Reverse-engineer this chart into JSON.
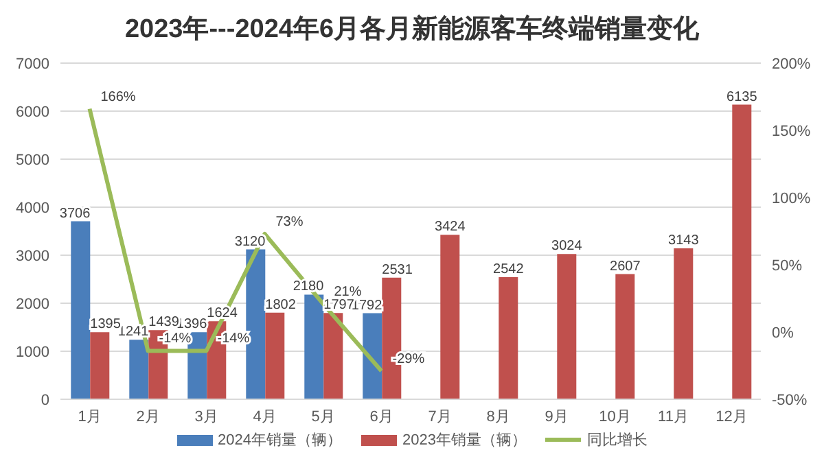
{
  "chart_data": {
    "type": "bar",
    "title": "2023年---2024年6月各月新能源客车终端销量变化",
    "categories": [
      "1月",
      "2月",
      "3月",
      "4月",
      "5月",
      "6月",
      "7月",
      "8月",
      "9月",
      "10月",
      "11月",
      "12月"
    ],
    "series": [
      {
        "name": "2024年销量（辆）",
        "color": "#4a7ebb",
        "values": [
          3706,
          1241,
          1396,
          3120,
          2180,
          1792,
          null,
          null,
          null,
          null,
          null,
          null
        ]
      },
      {
        "name": "2023年销量（辆）",
        "color": "#c0504d",
        "values": [
          1395,
          1439,
          1624,
          1802,
          1797,
          2531,
          3424,
          2542,
          3024,
          2607,
          3143,
          6135
        ]
      },
      {
        "name": "同比增长",
        "type": "line",
        "axis": "y2",
        "color": "#9bbb59",
        "values": [
          166,
          -14,
          -14,
          73,
          21,
          -29,
          null,
          null,
          null,
          null,
          null,
          null
        ],
        "value_labels": [
          "166%",
          "-14%",
          "-14%",
          "73%",
          "21%",
          "-29%",
          null,
          null,
          null,
          null,
          null,
          null
        ]
      }
    ],
    "ylim": [
      0,
      7000
    ],
    "yticks": [
      0,
      1000,
      2000,
      3000,
      4000,
      5000,
      6000,
      7000
    ],
    "y2lim": [
      -50,
      200
    ],
    "y2ticks": [
      {
        "value": -50,
        "label": "-50%"
      },
      {
        "value": 0,
        "label": "0%"
      },
      {
        "value": 50,
        "label": "50%"
      },
      {
        "value": 100,
        "label": "100%"
      },
      {
        "value": 150,
        "label": "150%"
      },
      {
        "value": 200,
        "label": "200%"
      }
    ],
    "grid": "y",
    "legend": "bottom",
    "data_labels": true,
    "marker": "none"
  }
}
